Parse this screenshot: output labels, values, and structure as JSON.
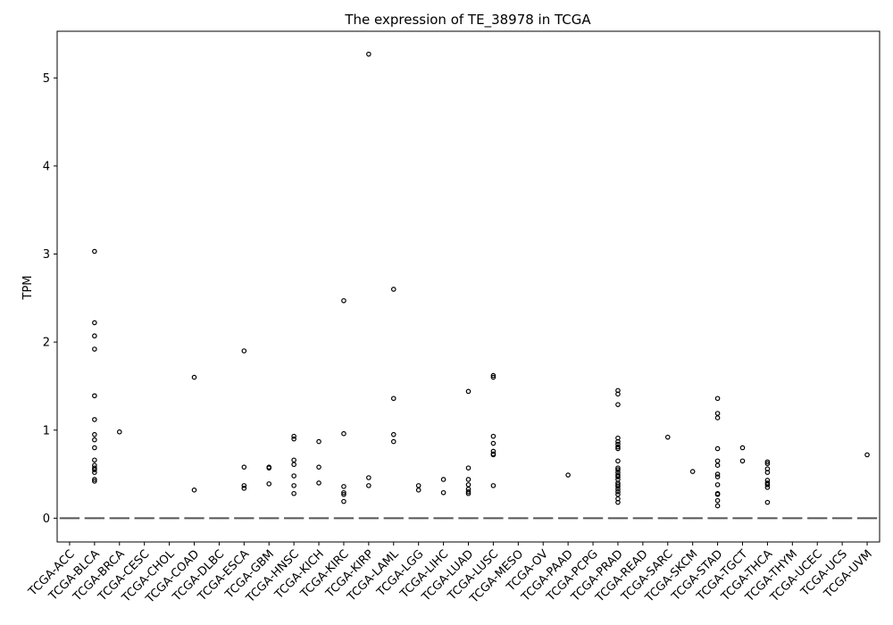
{
  "chart_data": {
    "type": "box",
    "title": "The expression of TE_38978 in TCGA",
    "xlabel": "",
    "ylabel": "TPM",
    "ylim": [
      -0.27,
      5.53
    ],
    "yticks": [
      0,
      1,
      2,
      3,
      4,
      5
    ],
    "grid": false,
    "categories": [
      "TCGA-ACC",
      "TCGA-BLCA",
      "TCGA-BRCA",
      "TCGA-CESC",
      "TCGA-CHOL",
      "TCGA-COAD",
      "TCGA-DLBC",
      "TCGA-ESCA",
      "TCGA-GBM",
      "TCGA-HNSC",
      "TCGA-KICH",
      "TCGA-KIRC",
      "TCGA-KIRP",
      "TCGA-LAML",
      "TCGA-LGG",
      "TCGA-LIHC",
      "TCGA-LUAD",
      "TCGA-LUSC",
      "TCGA-MESO",
      "TCGA-OV",
      "TCGA-PAAD",
      "TCGA-PCPG",
      "TCGA-PRAD",
      "TCGA-READ",
      "TCGA-SARC",
      "TCGA-SKCM",
      "TCGA-STAD",
      "TCGA-TGCT",
      "TCGA-THCA",
      "TCGA-THYM",
      "TCGA-UCEC",
      "TCGA-UCS",
      "TCGA-UVM"
    ],
    "median": 0,
    "outliers": [
      [],
      [
        3.03,
        2.22,
        2.07,
        1.92,
        1.39,
        1.12,
        0.95,
        0.89,
        0.8,
        0.66,
        0.6,
        0.57,
        0.55,
        0.52,
        0.44,
        0.42
      ],
      [
        0.98
      ],
      [],
      [],
      [
        1.6,
        0.32
      ],
      [],
      [
        1.9,
        0.58,
        0.37,
        0.34
      ],
      [
        0.58,
        0.57,
        0.39
      ],
      [
        0.93,
        0.9,
        0.66,
        0.61,
        0.48,
        0.37,
        0.28
      ],
      [
        0.87,
        0.58,
        0.4
      ],
      [
        2.47,
        0.96,
        0.36,
        0.29,
        0.27,
        0.19
      ],
      [
        5.27,
        0.46,
        0.37
      ],
      [
        2.6,
        1.36,
        0.95,
        0.87
      ],
      [
        0.37,
        0.32
      ],
      [
        0.44,
        0.29
      ],
      [
        1.44,
        0.57,
        0.44,
        0.38,
        0.33,
        0.3,
        0.28
      ],
      [
        1.62,
        1.6,
        0.93,
        0.85,
        0.76,
        0.73,
        0.72,
        0.37
      ],
      [],
      [],
      [
        0.49
      ],
      [],
      [
        1.45,
        1.41,
        1.29,
        0.91,
        0.87,
        0.84,
        0.81,
        0.79,
        0.65,
        0.57,
        0.55,
        0.52,
        0.49,
        0.47,
        0.44,
        0.4,
        0.38,
        0.36,
        0.33,
        0.3,
        0.27,
        0.22,
        0.18
      ],
      [],
      [
        0.92
      ],
      [
        0.53
      ],
      [
        1.36,
        1.19,
        1.14,
        0.79,
        0.65,
        0.6,
        0.5,
        0.47,
        0.38,
        0.28,
        0.27,
        0.2,
        0.14
      ],
      [
        0.8,
        0.65
      ],
      [
        0.64,
        0.62,
        0.56,
        0.52,
        0.43,
        0.4,
        0.38,
        0.35,
        0.18
      ],
      [],
      [],
      [],
      [
        0.72
      ]
    ]
  }
}
